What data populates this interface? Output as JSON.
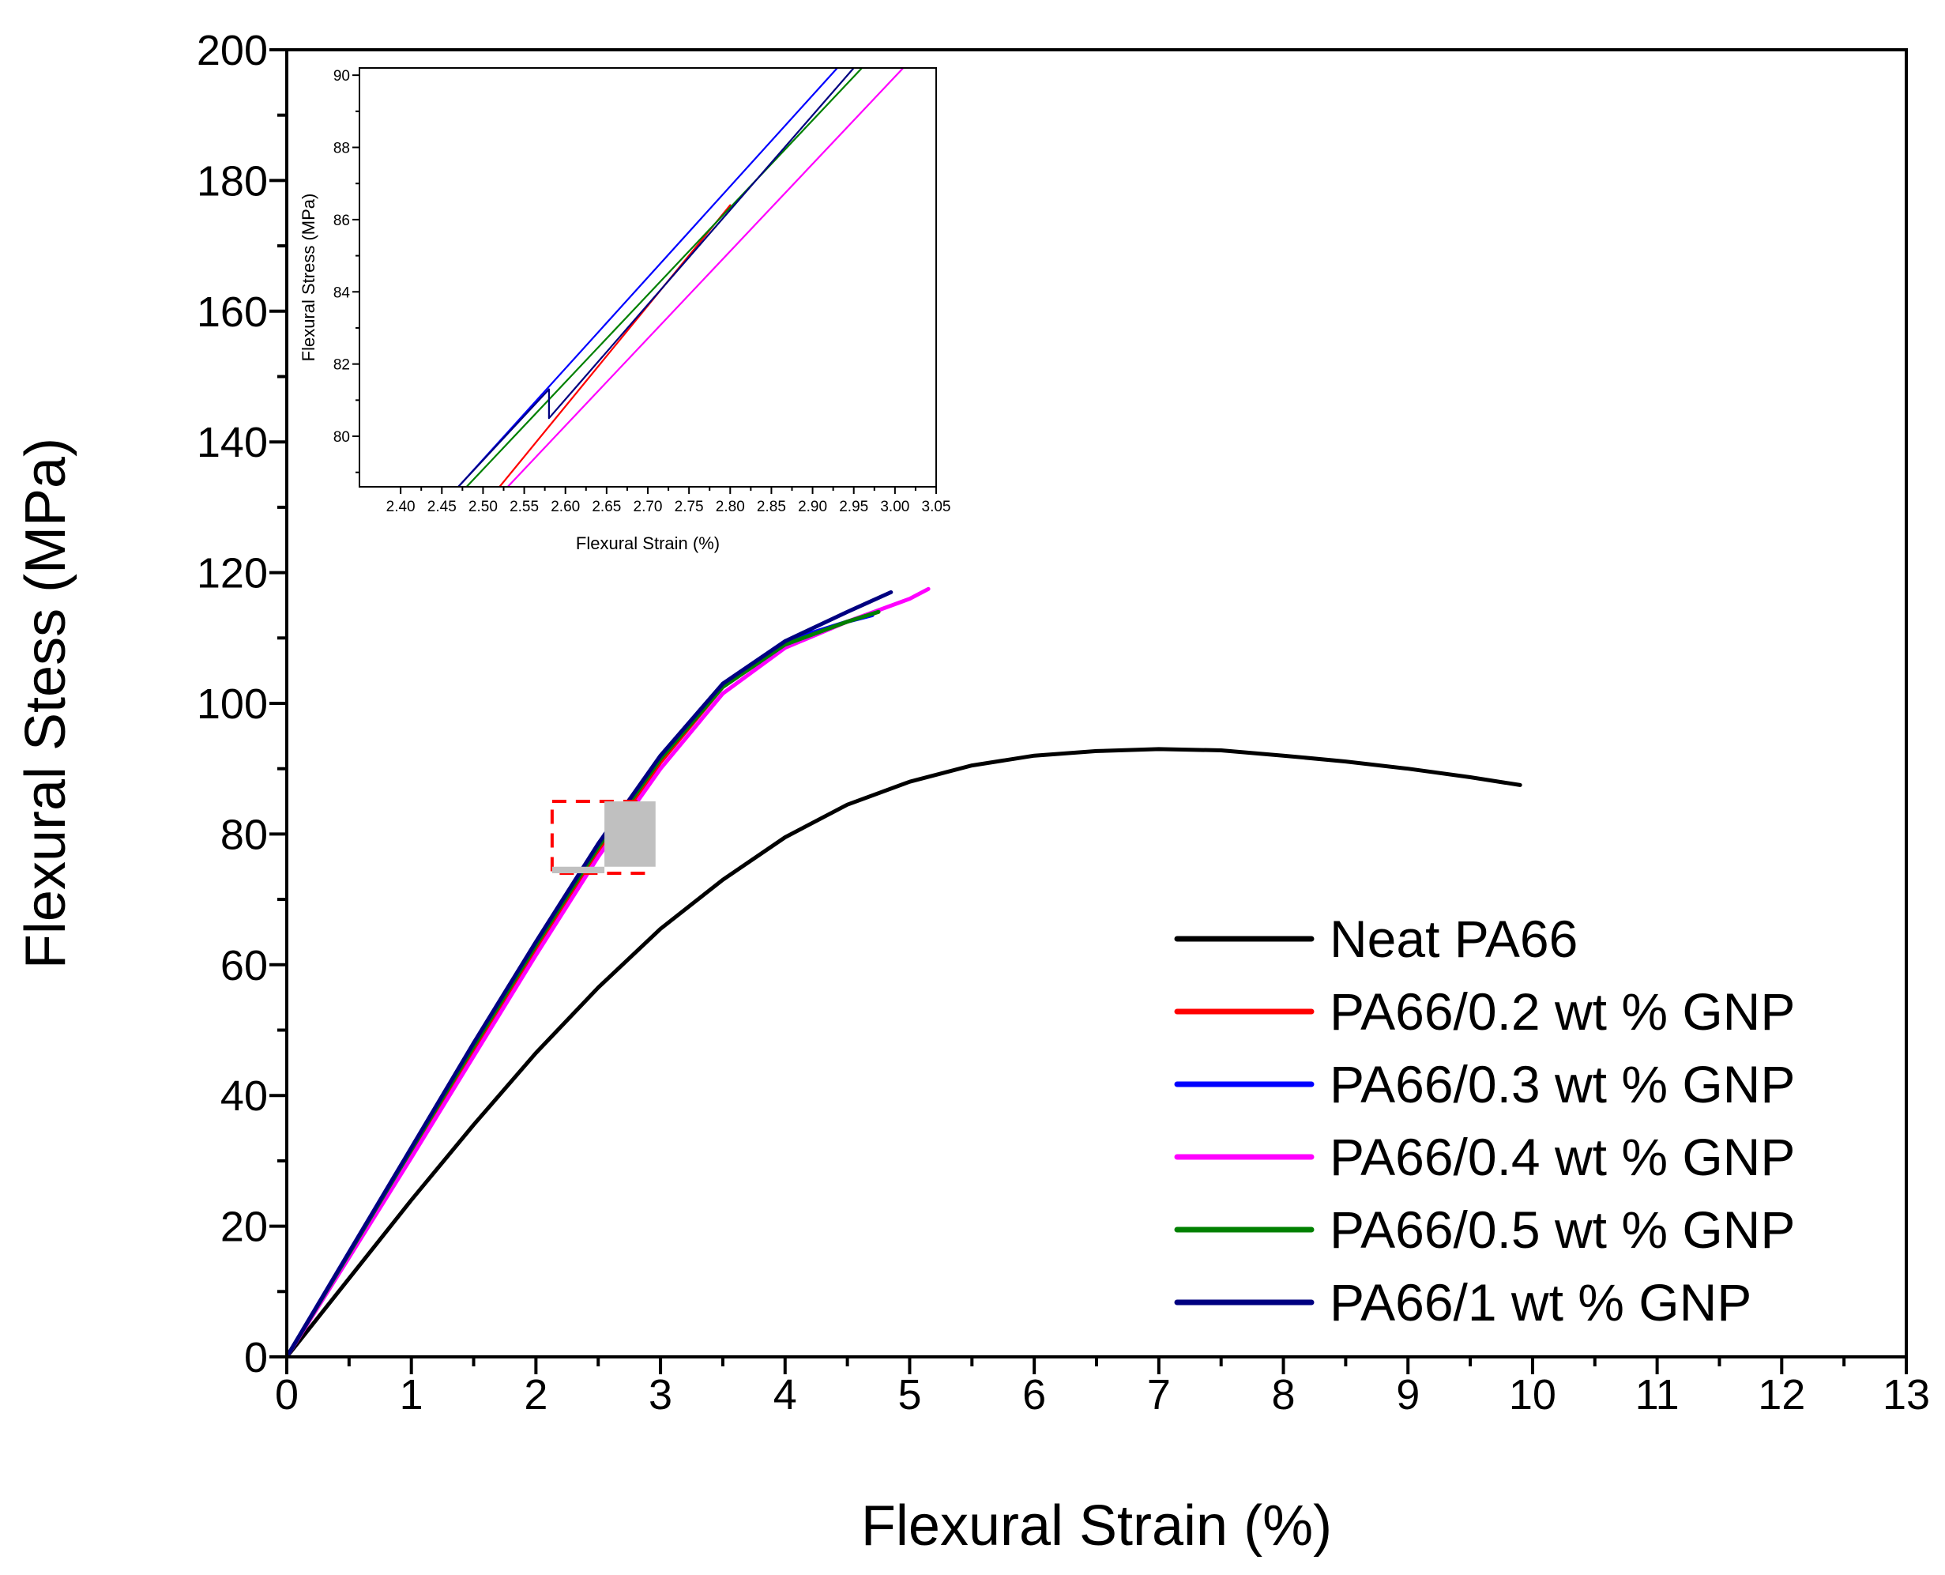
{
  "chart_data": [
    {
      "id": "main",
      "type": "line",
      "xlabel": "Flexural Strain (%)",
      "ylabel": "Flexural Stess (MPa)",
      "xlim": [
        0,
        13
      ],
      "ylim": [
        0,
        200
      ],
      "x_ticks": [
        0,
        1,
        2,
        3,
        4,
        5,
        6,
        7,
        8,
        9,
        10,
        11,
        12,
        13
      ],
      "x_tick_labels": [
        "0",
        "1",
        "2",
        "3",
        "4",
        "5",
        "6",
        "7",
        "8",
        "9",
        "10",
        "11",
        "12",
        "13"
      ],
      "y_ticks": [
        0,
        20,
        40,
        60,
        80,
        100,
        120,
        140,
        160,
        180,
        200
      ],
      "y_tick_labels": [
        "0",
        "20",
        "40",
        "60",
        "80",
        "100",
        "120",
        "140",
        "160",
        "180",
        "200"
      ],
      "grid": false,
      "legend_position": "bottom-right",
      "series": [
        {
          "name": "Neat PA66",
          "color": "#000000",
          "x": [
            0,
            0.5,
            1,
            1.5,
            2,
            2.5,
            3,
            3.5,
            4,
            4.5,
            5,
            5.5,
            6,
            6.5,
            7,
            7.5,
            8,
            8.5,
            9,
            9.5,
            9.9
          ],
          "y": [
            0,
            12,
            24,
            35.5,
            46.5,
            56.5,
            65.5,
            73,
            79.5,
            84.5,
            88,
            90.5,
            92,
            92.7,
            93,
            92.8,
            92,
            91.1,
            90,
            88.7,
            87.5
          ]
        },
        {
          "name": "PA66/0.2 wt % GNP",
          "color": "#ff0000",
          "x": [
            0,
            0.5,
            1,
            1.5,
            2,
            2.5,
            3,
            3.5,
            4,
            4.5,
            4.75
          ],
          "y": [
            0,
            15.5,
            31,
            46.5,
            62,
            77,
            91,
            102.5,
            109,
            112.5,
            114
          ]
        },
        {
          "name": "PA66/0.3 wt % GNP",
          "color": "#0000ff",
          "x": [
            0,
            0.5,
            1,
            1.5,
            2,
            2.5,
            3,
            3.5,
            4,
            4.5,
            4.7
          ],
          "y": [
            0,
            16,
            32,
            48,
            63.5,
            78.5,
            92,
            103,
            109.5,
            112.5,
            113.5
          ]
        },
        {
          "name": "PA66/0.4 wt % GNP",
          "color": "#ff00ff",
          "x": [
            0,
            0.5,
            1,
            1.5,
            2,
            2.5,
            3,
            3.5,
            4,
            4.5,
            5,
            5.15
          ],
          "y": [
            0,
            15.2,
            30.5,
            46,
            61.5,
            76.5,
            90,
            101.5,
            108.5,
            112.5,
            116,
            117.5
          ]
        },
        {
          "name": "PA66/0.5 wt % GNP",
          "color": "#008000",
          "x": [
            0,
            0.5,
            1,
            1.5,
            2,
            2.5,
            3,
            3.5,
            4,
            4.5,
            4.75
          ],
          "y": [
            0,
            15.8,
            31.7,
            47.5,
            63,
            78,
            91.5,
            102.5,
            109,
            112.5,
            114
          ]
        },
        {
          "name": "PA66/1 wt % GNP",
          "color": "#000080",
          "x": [
            0,
            0.5,
            1,
            1.5,
            2,
            2.5,
            3,
            3.5,
            4,
            4.5,
            4.85
          ],
          "y": [
            0,
            16,
            32,
            48,
            63.5,
            78.5,
            92,
            103,
            109.5,
            114,
            117
          ]
        }
      ],
      "annotations": [
        {
          "type": "dashed-box",
          "color": "#ff0000",
          "x_range": [
            2.13,
            2.88
          ],
          "y_range": [
            74,
            85
          ]
        },
        {
          "type": "filled-box",
          "color": "#c0c0c0",
          "x_range": [
            2.55,
            2.96
          ],
          "y_range": [
            75,
            85
          ]
        },
        {
          "type": "filled-box",
          "color": "#c0c0c0",
          "x_range": [
            2.13,
            2.55
          ],
          "y_range": [
            74,
            75
          ]
        }
      ]
    },
    {
      "id": "inset",
      "type": "line",
      "xlabel": "Flexural Strain (%)",
      "ylabel": "Flexural Stress (MPa)",
      "xlim": [
        2.35,
        3.05
      ],
      "ylim": [
        78.6,
        90.2
      ],
      "x_ticks": [
        2.4,
        2.45,
        2.5,
        2.55,
        2.6,
        2.65,
        2.7,
        2.75,
        2.8,
        2.85,
        2.9,
        2.95,
        3.0,
        3.05
      ],
      "x_tick_labels": [
        "2.40",
        "2.45",
        "2.50",
        "2.55",
        "2.60",
        "2.65",
        "2.70",
        "2.75",
        "2.80",
        "2.85",
        "2.90",
        "2.95",
        "3.00",
        "3.05"
      ],
      "y_ticks": [
        80,
        82,
        84,
        86,
        88,
        90
      ],
      "y_tick_labels": [
        "80",
        "82",
        "84",
        "86",
        "88",
        "90"
      ],
      "grid": false,
      "series": [
        {
          "name": "PA66/0.2 wt % GNP",
          "color": "#ff0000",
          "x": [
            2.52,
            2.8
          ],
          "y": [
            78.6,
            86.4
          ]
        },
        {
          "name": "PA66/0.3 wt % GNP",
          "color": "#0000ff",
          "x": [
            2.47,
            2.93
          ],
          "y": [
            78.6,
            90.2
          ]
        },
        {
          "name": "PA66/0.4 wt % GNP",
          "color": "#ff00ff",
          "x": [
            2.53,
            3.01
          ],
          "y": [
            78.6,
            90.2
          ]
        },
        {
          "name": "PA66/0.5 wt % GNP",
          "color": "#008000",
          "x": [
            2.48,
            2.96
          ],
          "y": [
            78.6,
            90.2
          ]
        },
        {
          "name": "PA66/1 wt % GNP",
          "color": "#000080",
          "x": [
            2.47,
            2.58,
            2.58,
            2.95
          ],
          "y": [
            78.6,
            81.3,
            80.5,
            90.2
          ]
        }
      ]
    }
  ]
}
